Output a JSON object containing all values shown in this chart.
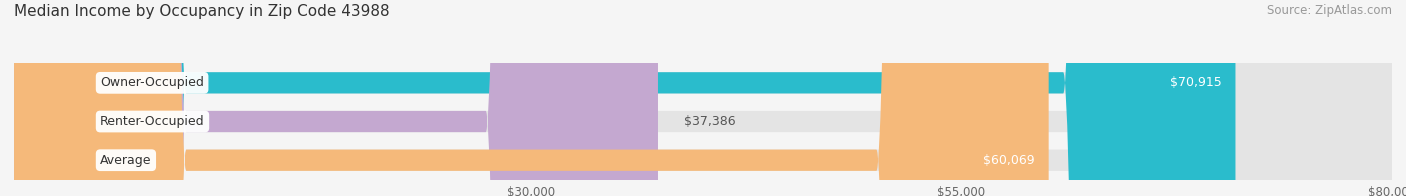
{
  "title": "Median Income by Occupancy in Zip Code 43988",
  "source": "Source: ZipAtlas.com",
  "categories": [
    "Owner-Occupied",
    "Renter-Occupied",
    "Average"
  ],
  "values": [
    70915,
    37386,
    60069
  ],
  "bar_colors": [
    "#2abccc",
    "#c4a8d0",
    "#f5b97a"
  ],
  "label_colors": [
    "#ffffff",
    "#555555",
    "#ffffff"
  ],
  "value_labels": [
    "$70,915",
    "$37,386",
    "$60,069"
  ],
  "xmin": 0,
  "xmax": 80000,
  "xticks": [
    30000,
    55000,
    80000
  ],
  "xtick_labels": [
    "$30,000",
    "$55,000",
    "$80,000"
  ],
  "background_color": "#f5f5f5",
  "bar_bg_color": "#e4e4e4",
  "title_fontsize": 11,
  "source_fontsize": 8.5,
  "label_fontsize": 9,
  "value_fontsize": 9
}
